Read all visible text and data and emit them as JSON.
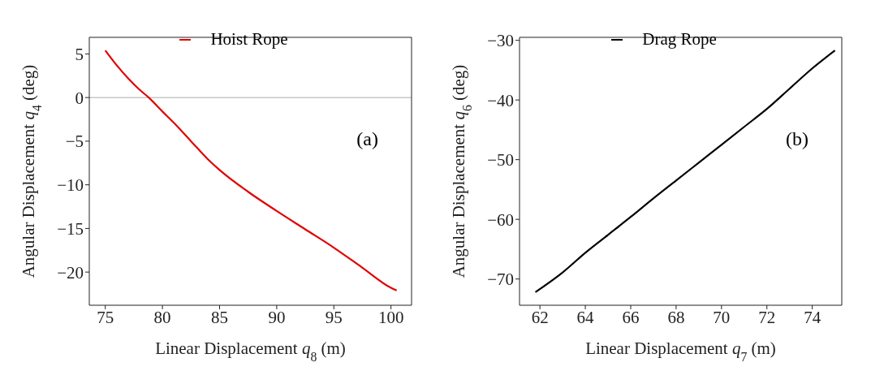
{
  "chart_data": [
    {
      "type": "line",
      "xlabel": "Linear Displacement q$_{8}$ (m)",
      "ylabel": "Angular Displacement q$_{4}$ (deg)",
      "xlim": [
        73.6,
        101.8
      ],
      "ylim": [
        -23.8,
        6.9
      ],
      "xticks": [
        75,
        80,
        85,
        90,
        95,
        100
      ],
      "yticks": [
        -20,
        -15,
        -10,
        -5,
        0,
        5
      ],
      "legend": "top",
      "line_style": "solid",
      "annotations": [
        "(a)"
      ],
      "ref_lines": [
        {
          "axis": "y",
          "value": 0,
          "color": "#aaaaaa"
        }
      ],
      "series": [
        {
          "name": "Hoist Rope",
          "color": "#e00000",
          "x": [
            75,
            76,
            77,
            78,
            78.8,
            80,
            81,
            82.5,
            84,
            85,
            87.5,
            90,
            92.5,
            95,
            97.5,
            100,
            100.5
          ],
          "values": [
            5.4,
            3.7,
            2.2,
            0.9,
            0,
            -1.6,
            -2.9,
            -5.0,
            -7.1,
            -8.3,
            -10.8,
            -13.0,
            -15.1,
            -17.2,
            -19.5,
            -21.8,
            -22.1
          ]
        }
      ]
    },
    {
      "type": "line",
      "xlabel": "Linear Displacement q$_{7}$ (m)",
      "ylabel": "Angular Displacement q$_{6}$ (deg)",
      "xlim": [
        61.1,
        75.3
      ],
      "ylim": [
        -74.4,
        -29.5
      ],
      "xticks": [
        62,
        64,
        66,
        68,
        70,
        72,
        74
      ],
      "yticks": [
        -70,
        -60,
        -50,
        -40,
        -30
      ],
      "legend": "top",
      "line_style": "solid",
      "annotations": [
        "(b)"
      ],
      "series": [
        {
          "name": "Drag Rope",
          "color": "#000000",
          "x": [
            61.8,
            63,
            64,
            65,
            66,
            67,
            68,
            69,
            70,
            71,
            72,
            73,
            74,
            75
          ],
          "values": [
            -72.2,
            -68.9,
            -65.6,
            -62.6,
            -59.6,
            -56.5,
            -53.5,
            -50.5,
            -47.5,
            -44.5,
            -41.5,
            -38.1,
            -34.7,
            -31.7
          ]
        }
      ]
    }
  ]
}
